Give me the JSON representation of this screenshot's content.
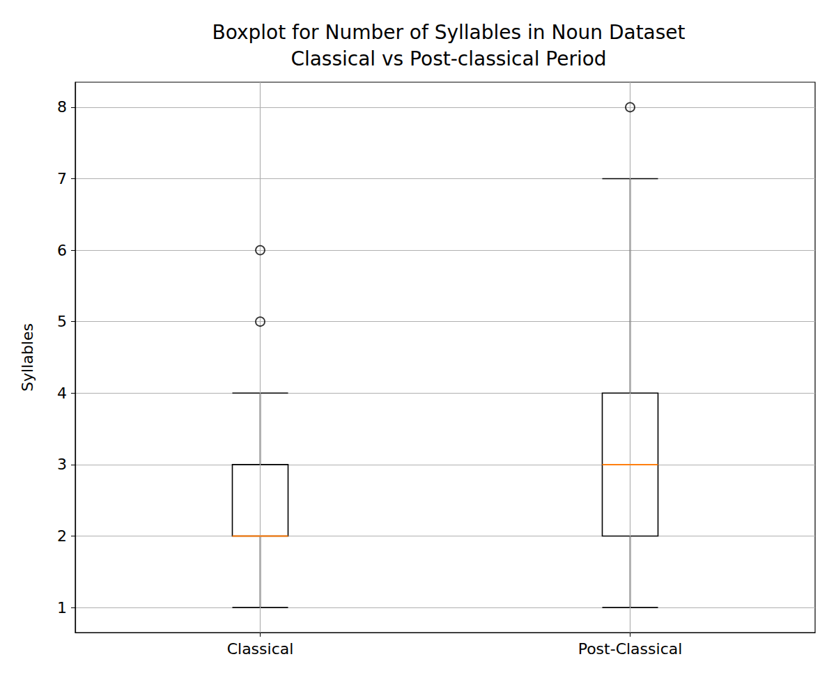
{
  "chart_data": {
    "type": "boxplot",
    "title": "Boxplot for Number of Syllables in Noun Dataset\nClassical vs Post-classical Period",
    "y_label": "Syllables",
    "categories": [
      "Classical",
      "Post-Classical"
    ],
    "boxes": [
      {
        "whisker_low": 1,
        "q1": 2,
        "median": 2,
        "q3": 3,
        "whisker_high": 4,
        "outliers": [
          5,
          6
        ]
      },
      {
        "whisker_low": 1,
        "q1": 2,
        "median": 3,
        "q3": 4,
        "whisker_high": 7,
        "outliers": [
          8
        ]
      }
    ],
    "color": "#000000",
    "ylim": [
      0.65,
      8.35
    ],
    "yticks": [
      1,
      2,
      3,
      4,
      5,
      6,
      7,
      8
    ],
    "grid": true
  }
}
